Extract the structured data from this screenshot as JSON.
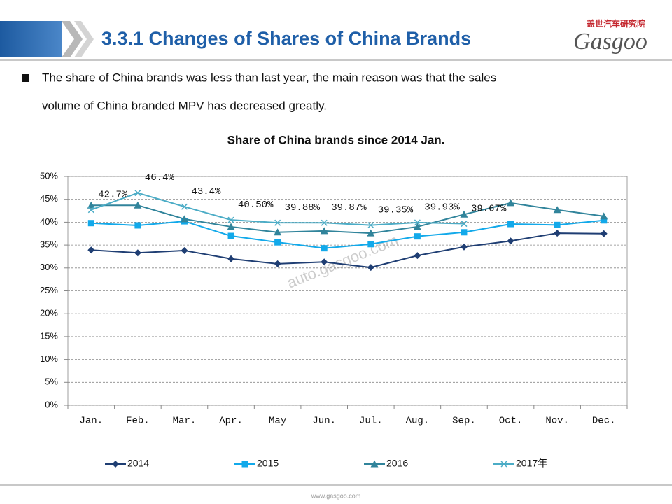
{
  "header": {
    "title": "3.3.1 Changes of Shares of China Brands",
    "logo_cn": "盖世汽车研究院",
    "logo_name": "Gasgoo"
  },
  "bullet": {
    "line1": "The share of China brands was less than last year, the main reason was that the sales",
    "line2": "volume of China branded MPV has decreased greatly."
  },
  "chart_data": {
    "type": "line",
    "title": "Share of China brands since 2014 Jan.",
    "watermark": "auto.gasgoo.com",
    "categories": [
      "Jan.",
      "Feb.",
      "Mar.",
      "Apr.",
      "May",
      "Jun.",
      "Jul.",
      "Aug.",
      "Sep.",
      "Oct.",
      "Nov.",
      "Dec."
    ],
    "ylim": [
      0,
      50
    ],
    "yticks": [
      {
        "value": 0,
        "label": "0%"
      },
      {
        "value": 5,
        "label": "5%"
      },
      {
        "value": 10,
        "label": "10%"
      },
      {
        "value": 15,
        "label": "15%"
      },
      {
        "value": 20,
        "label": "20%"
      },
      {
        "value": 25,
        "label": "25%"
      },
      {
        "value": 30,
        "label": "30%"
      },
      {
        "value": 35,
        "label": "35%"
      },
      {
        "value": 40,
        "label": "40%"
      },
      {
        "value": 45,
        "label": "45%"
      },
      {
        "value": 50,
        "label": "50%"
      }
    ],
    "grid": true,
    "legend": "bottom",
    "series": [
      {
        "name": "2014",
        "color": "#1f3e73",
        "marker": "diamond",
        "values": [
          33.9,
          33.3,
          33.8,
          32.0,
          30.9,
          31.3,
          30.1,
          32.7,
          34.6,
          35.9,
          37.6,
          37.5
        ]
      },
      {
        "name": "2015",
        "color": "#12a9ea",
        "marker": "square",
        "values": [
          39.8,
          39.3,
          40.2,
          37.0,
          35.6,
          34.3,
          35.2,
          36.9,
          37.8,
          39.6,
          39.4,
          40.4
        ]
      },
      {
        "name": "2016",
        "color": "#31849b",
        "marker": "triangle",
        "values": [
          43.7,
          43.7,
          40.7,
          39.0,
          37.8,
          38.1,
          37.6,
          39.0,
          41.7,
          44.2,
          42.7,
          41.3
        ]
      },
      {
        "name": "2017年",
        "color": "#4bacc6",
        "marker": "x",
        "values": [
          42.7,
          46.4,
          43.4,
          40.5,
          39.88,
          39.87,
          39.35,
          39.93,
          39.67,
          null,
          null,
          null
        ],
        "value_labels": [
          "42.7%",
          "46.4%",
          "43.4%",
          "40.50%",
          "39.88%",
          "39.87%",
          "39.35%",
          "39.93%",
          "39.67%",
          null,
          null,
          null
        ]
      }
    ]
  },
  "footer": {
    "url": "www.gasgoo.com"
  }
}
